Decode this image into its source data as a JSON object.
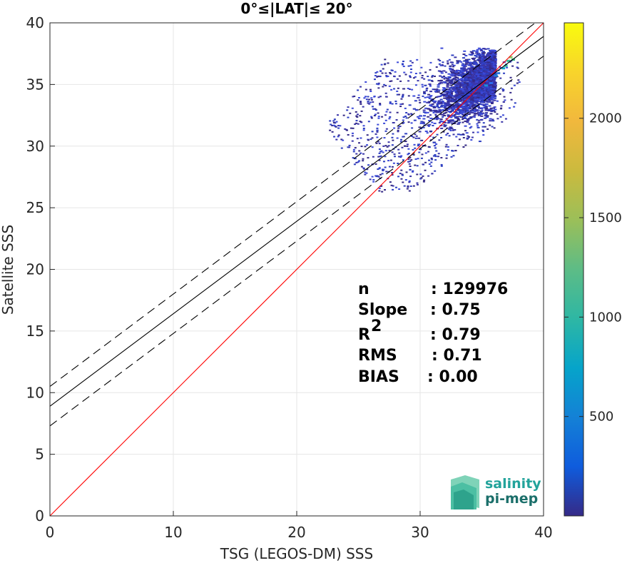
{
  "chart_data": {
    "type": "scatter",
    "title": "0°≤|LAT|≤ 20°",
    "xlabel": "TSG (LEGOS-DM) SSS",
    "ylabel": "Satellite SSS",
    "xlim": [
      0,
      40
    ],
    "ylim": [
      0,
      40
    ],
    "xticks": [
      "0",
      "10",
      "20",
      "30",
      "40"
    ],
    "yticks": [
      "0",
      "5",
      "10",
      "15",
      "20",
      "25",
      "30",
      "35",
      "40"
    ],
    "grid": true,
    "point_cloud": {
      "description_x_range": [
        21,
        38
      ],
      "description_y_range": [
        26,
        38
      ],
      "dense_center": [
        35.5,
        35.5
      ]
    },
    "lines": [
      {
        "role": "identity",
        "color": "#ff0000",
        "style": "solid",
        "x": [
          0,
          40
        ],
        "y": [
          0,
          40
        ]
      },
      {
        "role": "regression",
        "color": "#000000",
        "style": "solid",
        "x": [
          0,
          40
        ],
        "y": [
          8.9,
          38.9
        ]
      },
      {
        "role": "regression_upper",
        "color": "#000000",
        "style": "dashed",
        "x": [
          0,
          40
        ],
        "y": [
          10.5,
          40.5
        ]
      },
      {
        "role": "regression_lower",
        "color": "#000000",
        "style": "dashed",
        "x": [
          0,
          40
        ],
        "y": [
          7.3,
          37.3
        ]
      }
    ],
    "stats": [
      {
        "label": "n",
        "value": ": 129976"
      },
      {
        "label": "Slope",
        "value": ": 0.75"
      },
      {
        "label": "R",
        "sup": "2",
        "value": ": 0.79"
      },
      {
        "label": "RMS",
        "value": ": 0.71"
      },
      {
        "label": "BIAS",
        "value": ": 0.00"
      }
    ],
    "colorbar": {
      "colormap": "parula",
      "range": [
        0,
        2480
      ],
      "ticks": [
        "500",
        "1000",
        "1500",
        "2000"
      ],
      "tick_values": [
        500,
        1000,
        1500,
        2000
      ]
    }
  },
  "logo": {
    "line1": "salinity",
    "line2": "pi-mep",
    "color1": "#22a39b",
    "color2": "#1b6f6a"
  },
  "colors": {
    "identity": "#ff0000",
    "grid": "#e6e6e6"
  }
}
